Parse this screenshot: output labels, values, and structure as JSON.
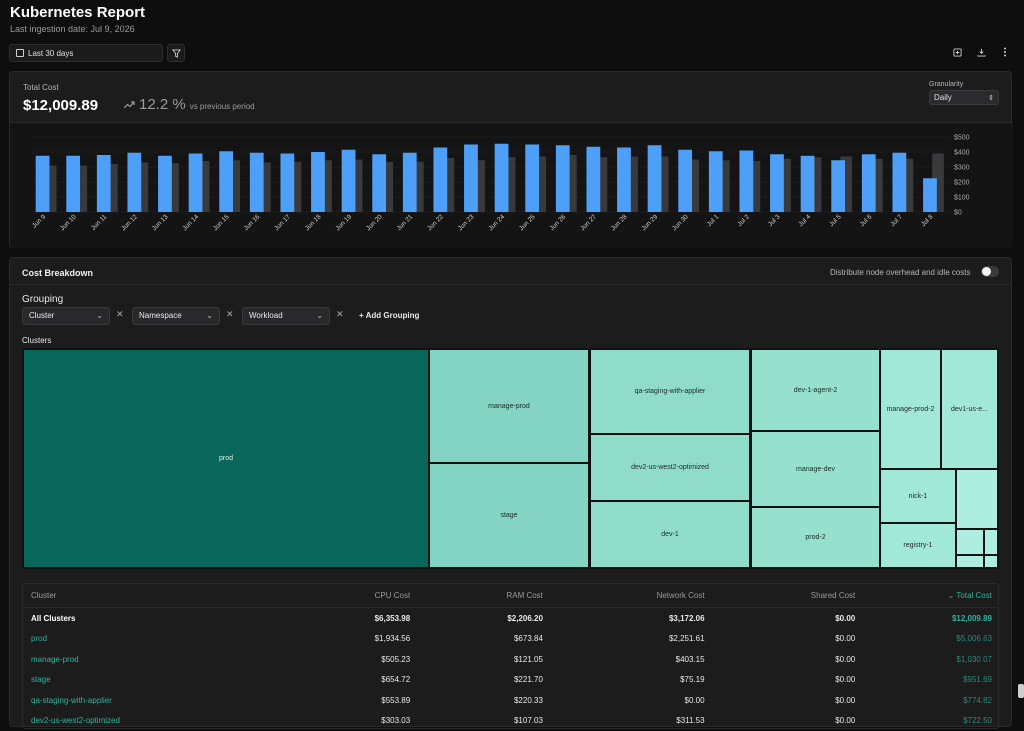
{
  "header": {
    "title": "Kubernetes Report",
    "subtitle": "Last ingestion date: Jul 9, 2026"
  },
  "toolbar": {
    "date_range": "Last 30 days",
    "icons": [
      "calendar-icon",
      "filter-icon",
      "add-box-icon",
      "download-icon",
      "more-vertical-icon"
    ]
  },
  "total_cost": {
    "label": "Total Cost",
    "value": "$12,009.89",
    "change": "12.2 %",
    "change_suffix": "vs previous period",
    "granularity_label": "Granularity",
    "granularity_value": "Daily"
  },
  "chart_data": {
    "type": "bar",
    "categories": [
      "Jun 9",
      "Jun 10",
      "Jun 11",
      "Jun 12",
      "Jun 13",
      "Jun 14",
      "Jun 15",
      "Jun 16",
      "Jun 17",
      "Jun 18",
      "Jun 19",
      "Jun 20",
      "Jun 21",
      "Jun 22",
      "Jun 23",
      "Jun 24",
      "Jun 25",
      "Jun 26",
      "Jun 27",
      "Jun 28",
      "Jun 29",
      "Jun 30",
      "Jul 1",
      "Jul 2",
      "Jul 3",
      "Jul 4",
      "Jul 5",
      "Jul 6",
      "Jul 7",
      "Jul 8"
    ],
    "series": [
      {
        "values": [
          375,
          375,
          380,
          395,
          375,
          390,
          405,
          395,
          390,
          400,
          415,
          385,
          395,
          430,
          450,
          455,
          450,
          445,
          435,
          430,
          445,
          415,
          405,
          410,
          385,
          375,
          345,
          385,
          395,
          225
        ]
      },
      {
        "values": [
          310,
          310,
          320,
          330,
          325,
          340,
          345,
          330,
          335,
          345,
          350,
          335,
          335,
          360,
          345,
          365,
          370,
          380,
          365,
          370,
          370,
          350,
          345,
          340,
          355,
          365,
          370,
          355,
          355,
          390
        ]
      }
    ],
    "yticks": [
      "$0",
      "$100",
      "$200",
      "$300",
      "$400",
      "$500"
    ],
    "ylim": [
      0,
      500
    ],
    "colors": [
      "#4d9ff7",
      "#3a3a3c"
    ]
  },
  "breakdown": {
    "title": "Cost Breakdown",
    "toggle_label": "Distribute node overhead and idle costs",
    "toggle_on": false,
    "grouping_label": "Grouping",
    "groupings": [
      "Cluster",
      "Namespace",
      "Workload"
    ],
    "add_grouping": "+ Add Grouping",
    "clusters_label": "Clusters",
    "treemap": [
      {
        "label": "prod",
        "cls": "prod"
      },
      {
        "label": "manage-prod",
        "cls": "c1"
      },
      {
        "label": "stage",
        "cls": "c1"
      },
      {
        "label": "qa-staging-with-applier",
        "cls": "c2"
      },
      {
        "label": "dev2-us-west2-optimized",
        "cls": "c2"
      },
      {
        "label": "dev-1",
        "cls": "c2"
      },
      {
        "label": "dev-1-agent-2",
        "cls": "c3"
      },
      {
        "label": "manage-dev",
        "cls": "c3"
      },
      {
        "label": "prod-2",
        "cls": "c3"
      },
      {
        "label": "manage-prod-2",
        "cls": "c4"
      },
      {
        "label": "dev1-us-e...",
        "cls": "c4"
      },
      {
        "label": "nick-1",
        "cls": "c4"
      },
      {
        "label": "registry-1",
        "cls": "c4"
      },
      {
        "label": "",
        "cls": "c5"
      },
      {
        "label": "",
        "cls": "c5"
      },
      {
        "label": "",
        "cls": "c5"
      },
      {
        "label": "",
        "cls": "c5"
      },
      {
        "label": "",
        "cls": "c5"
      }
    ]
  },
  "table": {
    "columns": [
      "Cluster",
      "CPU Cost",
      "RAM Cost",
      "Network Cost",
      "Shared Cost",
      "Total Cost"
    ],
    "rows": [
      {
        "name": "All Clusters",
        "cpu": "$6,353.98",
        "ram": "$2,206.20",
        "net": "$3,172.06",
        "shared": "$0.00",
        "total": "$12,009.89"
      },
      {
        "name": "prod",
        "cpu": "$1,934.56",
        "ram": "$673.84",
        "net": "$2,251.61",
        "shared": "$0.00",
        "total": "$5,006.63"
      },
      {
        "name": "manage-prod",
        "cpu": "$505.23",
        "ram": "$121.05",
        "net": "$403.15",
        "shared": "$0.00",
        "total": "$1,030.07"
      },
      {
        "name": "stage",
        "cpu": "$654.72",
        "ram": "$221.70",
        "net": "$75.19",
        "shared": "$0.00",
        "total": "$951.69"
      },
      {
        "name": "qa-staging-with-applier",
        "cpu": "$553.89",
        "ram": "$220.33",
        "net": "$0.00",
        "shared": "$0.00",
        "total": "$774.82"
      },
      {
        "name": "dev2-us-west2-optimized",
        "cpu": "$303.03",
        "ram": "$107.03",
        "net": "$311.53",
        "shared": "$0.00",
        "total": "$722.50"
      }
    ]
  }
}
